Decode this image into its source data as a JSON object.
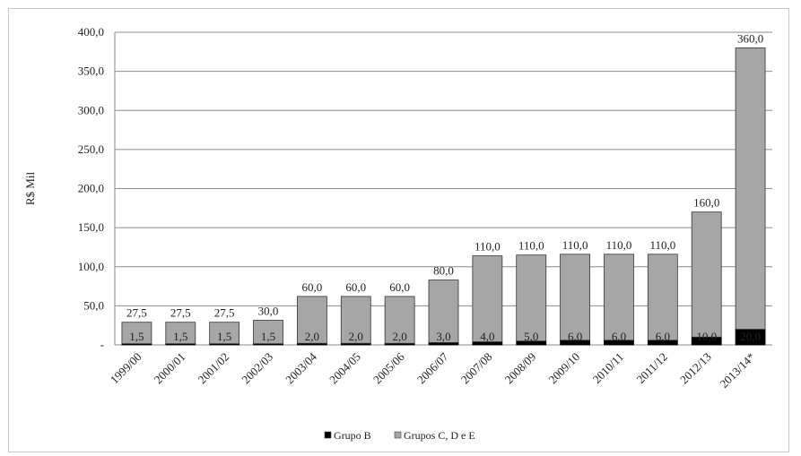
{
  "chart_data": {
    "type": "bar",
    "stacked": true,
    "title": "",
    "xlabel": "",
    "ylabel": "R$ Mil",
    "ylim": [
      0,
      400
    ],
    "yticks": [
      0,
      50,
      100,
      150,
      200,
      250,
      300,
      350,
      400
    ],
    "ytick_labels": [
      "-",
      "50,0",
      "100,0",
      "150,0",
      "200,0",
      "250,0",
      "300,0",
      "350,0",
      "400,0"
    ],
    "grid": true,
    "legend_position": "bottom",
    "categories": [
      "1999/00",
      "2000/01",
      "2001/02",
      "2002/03",
      "2003/04",
      "2004/05",
      "2005/06",
      "2006/07",
      "2007/08",
      "2008/09",
      "2009/10",
      "2010/11",
      "2011/12",
      "2012/13",
      "2013/14*"
    ],
    "series": [
      {
        "name": "Grupo B",
        "color": "#000000",
        "values": [
          1.5,
          1.5,
          1.5,
          1.5,
          2.0,
          2.0,
          2.0,
          3.0,
          4.0,
          5.0,
          6.0,
          6.0,
          6.0,
          10.0,
          20.0
        ],
        "labels": [
          "1,5",
          "1,5",
          "1,5",
          "1,5",
          "2,0",
          "2,0",
          "2,0",
          "3,0",
          "4,0",
          "5,0",
          "6,0",
          "6,0",
          "6,0",
          "10,0",
          "20,0"
        ]
      },
      {
        "name": "Grupos C, D e E",
        "color": "#a6a6a6",
        "values": [
          27.5,
          27.5,
          27.5,
          30.0,
          60.0,
          60.0,
          60.0,
          80.0,
          110.0,
          110.0,
          110.0,
          110.0,
          110.0,
          160.0,
          360.0
        ],
        "labels": [
          "27,5",
          "27,5",
          "27,5",
          "30,0",
          "60,0",
          "60,0",
          "60,0",
          "80,0",
          "110,0",
          "110,0",
          "110,0",
          "110,0",
          "110,0",
          "160,0",
          "360,0"
        ]
      }
    ]
  }
}
